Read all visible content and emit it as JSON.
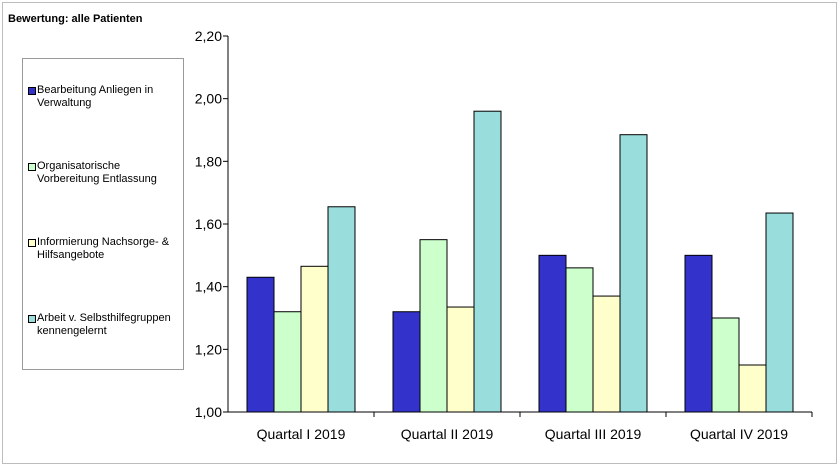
{
  "chart_data": {
    "type": "bar",
    "title": "Bewertung: alle Patienten",
    "xlabel": "",
    "ylabel": "",
    "categories": [
      "Quartal I 2019",
      "Quartal II 2019",
      "Quartal III 2019",
      "Quartal IV 2019"
    ],
    "series": [
      {
        "name": "Bearbeitung Anliegen in Verwaltung",
        "color": "#3333cc",
        "values": [
          1.43,
          1.32,
          1.5,
          1.5
        ]
      },
      {
        "name": "Organisatorische Vorbereitung Entlassung",
        "color": "#ccffcc",
        "values": [
          1.32,
          1.55,
          1.46,
          1.3
        ]
      },
      {
        "name": "Informierung Nachsorge- & Hilfsangebote",
        "color": "#ffffcc",
        "values": [
          1.465,
          1.335,
          1.37,
          1.15
        ]
      },
      {
        "name": "Arbeit v. Selbsthilfegruppen kennengelernt",
        "color": "#99dddd",
        "values": [
          1.655,
          1.96,
          1.885,
          1.635
        ]
      }
    ],
    "ylim": [
      1.0,
      2.2
    ],
    "yticks": [
      "1,00",
      "1,20",
      "1,40",
      "1,60",
      "1,80",
      "2,00",
      "2,20"
    ],
    "grid": false,
    "legend": "left"
  }
}
